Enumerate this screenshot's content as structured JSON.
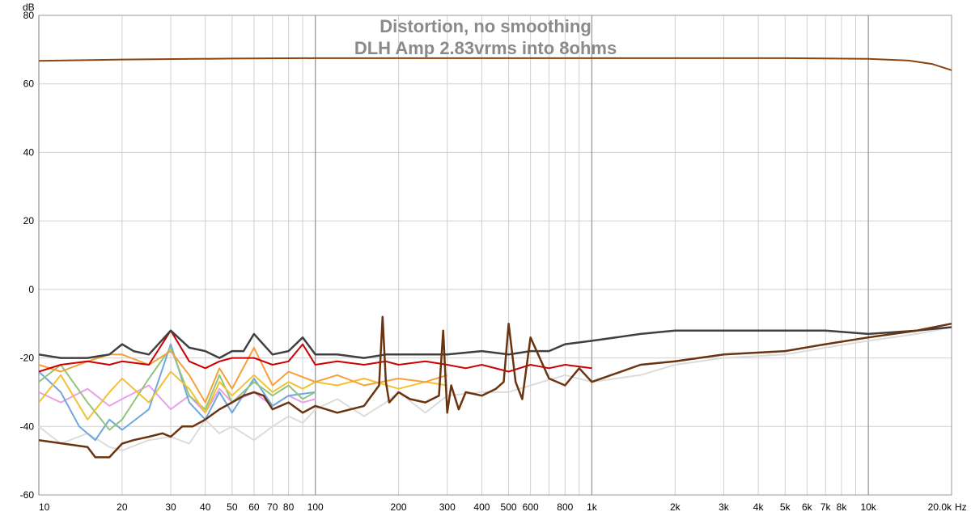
{
  "chart_data": {
    "type": "line",
    "title": "Distortion, no smoothing",
    "subtitle": "DLH Amp 2.83vrms into 8ohms",
    "xlabel": "",
    "ylabel": "",
    "x_unit": "Hz",
    "y_unit": "dB",
    "x_scale": "log",
    "xlim": [
      10,
      20000
    ],
    "ylim": [
      -60,
      80
    ],
    "grid": true,
    "legend": "none",
    "x_ticks": [
      {
        "v": 10,
        "label": "10"
      },
      {
        "v": 20,
        "label": "20"
      },
      {
        "v": 30,
        "label": "30"
      },
      {
        "v": 40,
        "label": "40"
      },
      {
        "v": 50,
        "label": "50"
      },
      {
        "v": 60,
        "label": "60"
      },
      {
        "v": 70,
        "label": "70"
      },
      {
        "v": 80,
        "label": "80"
      },
      {
        "v": 100,
        "label": "100"
      },
      {
        "v": 200,
        "label": "200"
      },
      {
        "v": 300,
        "label": "300"
      },
      {
        "v": 400,
        "label": "400"
      },
      {
        "v": 500,
        "label": "500"
      },
      {
        "v": 600,
        "label": "600"
      },
      {
        "v": 800,
        "label": "800"
      },
      {
        "v": 1000,
        "label": "1k"
      },
      {
        "v": 2000,
        "label": "2k"
      },
      {
        "v": 3000,
        "label": "3k"
      },
      {
        "v": 4000,
        "label": "4k"
      },
      {
        "v": 5000,
        "label": "5k"
      },
      {
        "v": 6000,
        "label": "6k"
      },
      {
        "v": 7000,
        "label": "7k"
      },
      {
        "v": 8000,
        "label": "8k"
      },
      {
        "v": 10000,
        "label": "10k"
      },
      {
        "v": 20000,
        "label": "20.0k"
      }
    ],
    "y_ticks": [
      -60,
      -40,
      -20,
      0,
      20,
      40,
      60,
      80
    ],
    "series": [
      {
        "color": "#8b4513",
        "width": 2,
        "x": [
          10,
          20,
          50,
          100,
          1000,
          5000,
          10000,
          14000,
          17000,
          20000
        ],
        "y": [
          66.7,
          67.1,
          67.4,
          67.5,
          67.5,
          67.5,
          67.3,
          66.8,
          65.8,
          64.0
        ]
      },
      {
        "color": "#dcdcdc",
        "width": 2,
        "x": [
          10,
          12,
          15,
          18,
          20,
          25,
          30,
          35,
          40,
          45,
          50,
          60,
          70,
          80,
          90,
          100,
          120,
          150,
          180,
          200,
          250,
          300,
          400,
          500,
          600,
          800,
          1000,
          1500,
          2000,
          3000,
          5000,
          7000,
          10000,
          15000,
          20000
        ],
        "y": [
          -40,
          -45,
          -42,
          -46,
          -47,
          -44,
          -43,
          -45,
          -38,
          -42,
          -40,
          -44,
          -40,
          -37,
          -39,
          -35,
          -32,
          -37,
          -33,
          -30,
          -36,
          -31,
          -30,
          -30,
          -28,
          -25,
          -27,
          -25,
          -22,
          -20,
          -19,
          -17,
          -15,
          -13,
          -11
        ]
      },
      {
        "color": "#e8a0e8",
        "width": 2,
        "x": [
          10,
          12,
          15,
          18,
          20,
          25,
          30,
          35,
          40,
          45,
          50,
          60,
          70,
          80,
          90,
          100
        ],
        "y": [
          -30,
          -33,
          -29,
          -34,
          -32,
          -28,
          -35,
          -31,
          -36,
          -29,
          -33,
          -30,
          -34,
          -31,
          -33,
          -32
        ]
      },
      {
        "color": "#6fa8dc",
        "width": 2,
        "x": [
          10,
          12,
          14,
          16,
          18,
          20,
          25,
          30,
          35,
          40,
          45,
          50,
          60,
          70,
          80,
          100
        ],
        "y": [
          -24,
          -30,
          -40,
          -44,
          -38,
          -41,
          -35,
          -16,
          -33,
          -38,
          -30,
          -36,
          -26,
          -34,
          -31,
          -30
        ]
      },
      {
        "color": "#93c47d",
        "width": 2,
        "x": [
          10,
          12,
          15,
          18,
          20,
          25,
          30,
          35,
          40,
          45,
          50,
          60,
          70,
          80,
          90,
          100
        ],
        "y": [
          -27,
          -22,
          -33,
          -41,
          -38,
          -26,
          -17,
          -31,
          -35,
          -25,
          -33,
          -27,
          -31,
          -28,
          -32,
          -30
        ]
      },
      {
        "color": "#f1c232",
        "width": 2,
        "x": [
          10,
          12,
          15,
          18,
          20,
          25,
          30,
          35,
          40,
          45,
          50,
          60,
          70,
          80,
          90,
          100,
          120,
          150,
          200,
          250,
          300
        ],
        "y": [
          -33,
          -25,
          -38,
          -30,
          -26,
          -33,
          -24,
          -29,
          -36,
          -27,
          -31,
          -25,
          -30,
          -27,
          -29,
          -27,
          -28,
          -26,
          -29,
          -27,
          -28
        ]
      },
      {
        "color": "#f6a03c",
        "width": 2,
        "x": [
          10,
          12,
          15,
          18,
          20,
          25,
          30,
          35,
          40,
          45,
          50,
          60,
          70,
          80,
          100,
          120,
          150,
          200,
          250,
          300
        ],
        "y": [
          -22,
          -24,
          -21,
          -19,
          -19,
          -22,
          -18,
          -25,
          -33,
          -23,
          -29,
          -17,
          -28,
          -24,
          -27,
          -25,
          -28,
          -26,
          -27,
          -25
        ]
      },
      {
        "color": "#cc0000",
        "width": 2,
        "x": [
          10,
          12,
          15,
          18,
          20,
          25,
          30,
          35,
          40,
          45,
          50,
          60,
          70,
          80,
          90,
          100,
          120,
          150,
          180,
          200,
          250,
          300,
          350,
          400,
          500,
          600,
          700,
          800,
          1000
        ],
        "y": [
          -24,
          -22,
          -21,
          -22,
          -21,
          -22,
          -12,
          -21,
          -23,
          -21,
          -20,
          -20,
          -22,
          -21,
          -16,
          -22,
          -21,
          -22,
          -21,
          -22,
          -21,
          -22,
          -23,
          -22,
          -24,
          -22,
          -23,
          -22,
          -23
        ]
      },
      {
        "color": "#404040",
        "width": 2.5,
        "x": [
          10,
          12,
          15,
          18,
          20,
          22,
          25,
          30,
          35,
          40,
          45,
          50,
          55,
          60,
          70,
          80,
          90,
          100,
          120,
          150,
          180,
          200,
          250,
          300,
          400,
          500,
          600,
          700,
          800,
          1000,
          1500,
          2000,
          3000,
          5000,
          7000,
          10000,
          15000,
          20000
        ],
        "y": [
          -19,
          -20,
          -20,
          -19,
          -16,
          -18,
          -19,
          -12,
          -17,
          -18,
          -20,
          -18,
          -18,
          -13,
          -19,
          -18,
          -14,
          -19,
          -19,
          -20,
          -19,
          -19,
          -19,
          -19,
          -18,
          -19,
          -18,
          -18,
          -16,
          -15,
          -13,
          -12,
          -12,
          -12,
          -12,
          -13,
          -12,
          -11
        ]
      },
      {
        "color": "#6b3410",
        "width": 2.5,
        "x": [
          10,
          15,
          16,
          18,
          20,
          22,
          25,
          28,
          30,
          33,
          36,
          40,
          45,
          50,
          55,
          60,
          65,
          70,
          80,
          90,
          100,
          120,
          150,
          170,
          175,
          180,
          185,
          200,
          220,
          250,
          280,
          290,
          300,
          310,
          330,
          350,
          400,
          450,
          480,
          500,
          530,
          560,
          600,
          700,
          800,
          900,
          1000,
          1500,
          2000,
          3000,
          5000,
          7000,
          10000,
          15000,
          20000
        ],
        "y": [
          -44,
          -46,
          -49,
          -49,
          -45,
          -44,
          -43,
          -42,
          -43,
          -40,
          -40,
          -38,
          -35,
          -33,
          -31,
          -30,
          -31,
          -35,
          -33,
          -36,
          -34,
          -36,
          -34,
          -28,
          -8,
          -27,
          -33,
          -30,
          -32,
          -33,
          -31,
          -12,
          -36,
          -28,
          -35,
          -30,
          -31,
          -29,
          -27,
          -10,
          -27,
          -32,
          -14,
          -26,
          -28,
          -23,
          -27,
          -22,
          -21,
          -19,
          -18,
          -16,
          -14,
          -12,
          -10
        ]
      }
    ]
  }
}
